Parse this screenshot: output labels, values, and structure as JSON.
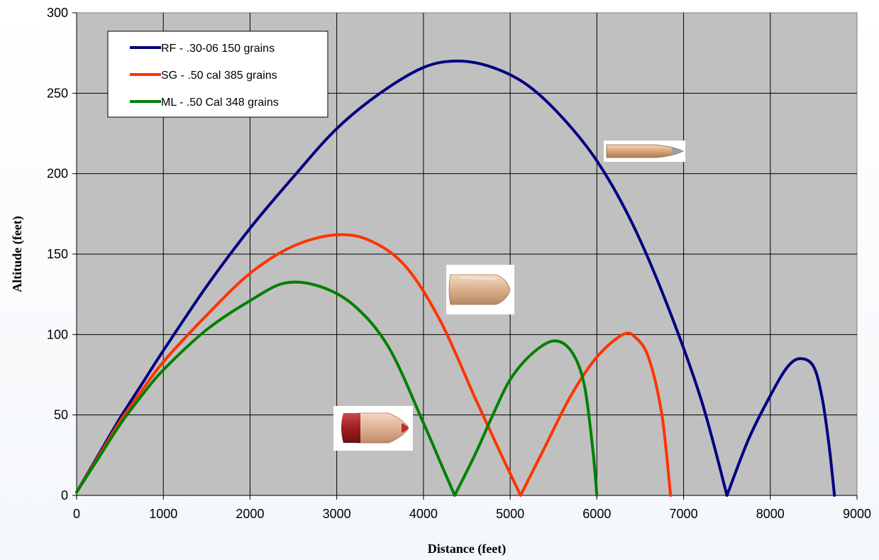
{
  "chart_data": {
    "type": "line",
    "title": "",
    "xlabel": "Distance (feet)",
    "ylabel": "Altitude (feet)",
    "xlim": [
      0,
      9000
    ],
    "ylim": [
      0,
      300
    ],
    "x_ticks": [
      0,
      1000,
      2000,
      3000,
      4000,
      5000,
      6000,
      7000,
      8000,
      9000
    ],
    "y_ticks": [
      0,
      50,
      100,
      150,
      200,
      250,
      300
    ],
    "grid": true,
    "plot_background": "#c0c0c0",
    "legend_position": "top-left",
    "series": [
      {
        "name": "RF - .30-06 150 grains",
        "color": "#000080",
        "points": [
          [
            0,
            2
          ],
          [
            250,
            25
          ],
          [
            500,
            48
          ],
          [
            750,
            69
          ],
          [
            1000,
            90
          ],
          [
            1500,
            130
          ],
          [
            2000,
            166
          ],
          [
            2500,
            198
          ],
          [
            3000,
            228
          ],
          [
            3500,
            250
          ],
          [
            4000,
            266
          ],
          [
            4400,
            270
          ],
          [
            4800,
            266
          ],
          [
            5200,
            255
          ],
          [
            5600,
            235
          ],
          [
            6000,
            208
          ],
          [
            6400,
            170
          ],
          [
            6800,
            120
          ],
          [
            7200,
            60
          ],
          [
            7500,
            0
          ],
          [
            7750,
            35
          ],
          [
            8000,
            62
          ],
          [
            8200,
            80
          ],
          [
            8350,
            85
          ],
          [
            8500,
            80
          ],
          [
            8600,
            60
          ],
          [
            8680,
            30
          ],
          [
            8740,
            0
          ]
        ]
      },
      {
        "name": "SG - .50 cal 385 grains",
        "color": "#ff3300",
        "points": [
          [
            0,
            2
          ],
          [
            250,
            24
          ],
          [
            500,
            46
          ],
          [
            750,
            65
          ],
          [
            1000,
            83
          ],
          [
            1500,
            112
          ],
          [
            2000,
            138
          ],
          [
            2500,
            155
          ],
          [
            3000,
            162
          ],
          [
            3400,
            158
          ],
          [
            3800,
            142
          ],
          [
            4200,
            108
          ],
          [
            4600,
            60
          ],
          [
            4900,
            25
          ],
          [
            5120,
            0
          ],
          [
            5400,
            30
          ],
          [
            5700,
            62
          ],
          [
            6000,
            86
          ],
          [
            6300,
            100
          ],
          [
            6450,
            98
          ],
          [
            6600,
            85
          ],
          [
            6750,
            50
          ],
          [
            6850,
            0
          ]
        ]
      },
      {
        "name": "ML - .50 Cal 348 grains",
        "color": "#008000",
        "points": [
          [
            0,
            2
          ],
          [
            250,
            23
          ],
          [
            500,
            44
          ],
          [
            750,
            62
          ],
          [
            1000,
            78
          ],
          [
            1500,
            103
          ],
          [
            2000,
            121
          ],
          [
            2400,
            132
          ],
          [
            2800,
            130
          ],
          [
            3200,
            118
          ],
          [
            3600,
            92
          ],
          [
            4000,
            45
          ],
          [
            4200,
            20
          ],
          [
            4360,
            0
          ],
          [
            4600,
            26
          ],
          [
            4800,
            50
          ],
          [
            5000,
            72
          ],
          [
            5250,
            88
          ],
          [
            5500,
            96
          ],
          [
            5700,
            90
          ],
          [
            5850,
            70
          ],
          [
            5950,
            30
          ],
          [
            6000,
            0
          ]
        ]
      }
    ],
    "icons": [
      "rifle-bullet-icon",
      "shotgun-slug-icon",
      "muzzleloader-bullet-icon"
    ]
  }
}
